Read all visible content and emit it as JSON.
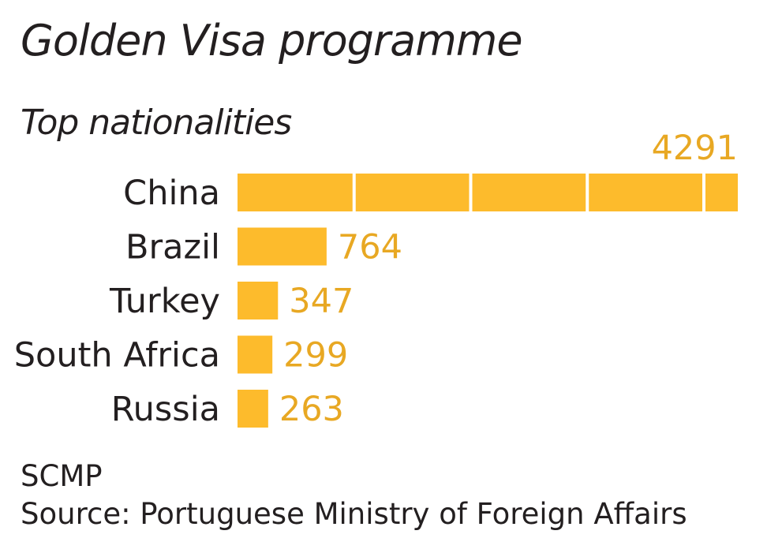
{
  "title": "Golden Visa programme",
  "subtitle": "Top nationalities",
  "credit": "SCMP",
  "source": "Source: Portuguese Ministry of Foreign Affairs",
  "colors": {
    "bar": "#fdbb2c",
    "value_label": "#e8a823",
    "text": "#231f20",
    "divider": "#ffffff"
  },
  "chart_data": {
    "type": "bar",
    "orientation": "horizontal",
    "categories": [
      "China",
      "Brazil",
      "Turkey",
      "South Africa",
      "Russia"
    ],
    "values": [
      4291,
      764,
      347,
      299,
      263
    ],
    "title": "Golden Visa programme",
    "subtitle": "Top nationalities",
    "xlabel": "",
    "ylabel": "",
    "segment_size": 1000,
    "grid": false
  }
}
